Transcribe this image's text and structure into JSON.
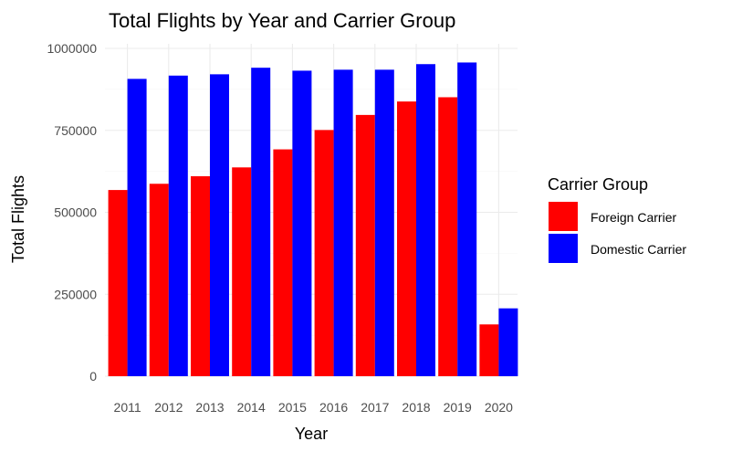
{
  "chart_data": {
    "type": "bar",
    "title": "Total Flights by Year and Carrier Group",
    "xlabel": "Year",
    "ylabel": "Total Flights",
    "categories": [
      "2011",
      "2012",
      "2013",
      "2014",
      "2015",
      "2016",
      "2017",
      "2018",
      "2019",
      "2020"
    ],
    "series": [
      {
        "name": "Foreign Carrier",
        "color": "#ff0000",
        "values": [
          568000,
          587000,
          610000,
          637000,
          692000,
          751000,
          797000,
          838000,
          851000,
          158000
        ]
      },
      {
        "name": "Domestic Carrier",
        "color": "#0000ff",
        "values": [
          907000,
          917000,
          921000,
          941000,
          932000,
          935000,
          935000,
          952000,
          957000,
          207000
        ]
      }
    ],
    "ylim": [
      0,
      1000000
    ],
    "yticks": [
      0,
      250000,
      500000,
      750000,
      1000000
    ],
    "ytick_labels": [
      "0",
      "250000",
      "500000",
      "750000",
      "1000000"
    ],
    "grid": true,
    "legend": {
      "title": "Carrier Group",
      "placement": "right"
    }
  }
}
